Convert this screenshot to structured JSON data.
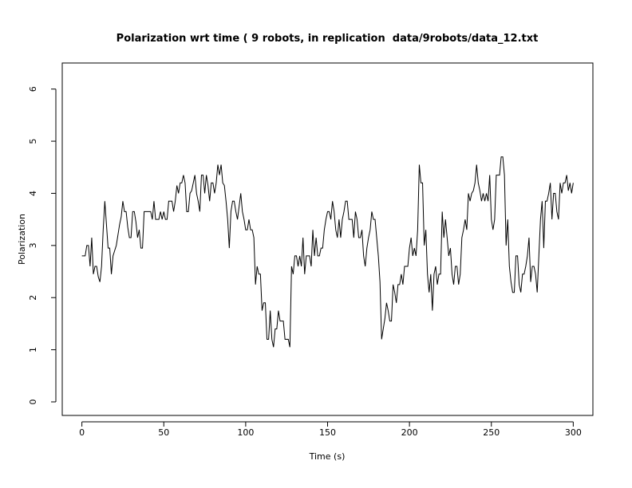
{
  "chart_data": {
    "type": "line",
    "title": "Polarization wrt time ( 9 robots, in replication  data/9robots/data_12.txt",
    "x_label": "Time (s)",
    "y_label": "Polarization",
    "xlim": [
      -12,
      312
    ],
    "ylim": [
      -0.26,
      6.5
    ],
    "xticks": [
      0,
      50,
      100,
      150,
      200,
      250,
      300
    ],
    "yticks": [
      0,
      1,
      2,
      3,
      4,
      5,
      6
    ],
    "x": [
      0,
      1,
      2,
      3,
      4,
      5,
      6,
      7,
      8,
      9,
      10,
      11,
      12,
      13,
      14,
      15,
      16,
      17,
      18,
      19,
      20,
      21,
      22,
      23,
      24,
      25,
      26,
      27,
      28,
      29,
      30,
      31,
      32,
      33,
      34,
      35,
      36,
      37,
      38,
      39,
      40,
      41,
      42,
      43,
      44,
      45,
      46,
      47,
      48,
      49,
      50,
      51,
      52,
      53,
      54,
      55,
      56,
      57,
      58,
      59,
      60,
      61,
      62,
      63,
      64,
      65,
      66,
      67,
      68,
      69,
      70,
      71,
      72,
      73,
      74,
      75,
      76,
      77,
      78,
      79,
      80,
      81,
      82,
      83,
      84,
      85,
      86,
      87,
      88,
      89,
      90,
      91,
      92,
      93,
      94,
      95,
      96,
      97,
      98,
      99,
      100,
      101,
      102,
      103,
      104,
      105,
      106,
      107,
      108,
      109,
      110,
      111,
      112,
      113,
      114,
      115,
      116,
      117,
      118,
      119,
      120,
      121,
      122,
      123,
      124,
      125,
      126,
      127,
      128,
      129,
      130,
      131,
      132,
      133,
      134,
      135,
      136,
      137,
      138,
      139,
      140,
      141,
      142,
      143,
      144,
      145,
      146,
      147,
      148,
      149,
      150,
      151,
      152,
      153,
      154,
      155,
      156,
      157,
      158,
      159,
      160,
      161,
      162,
      163,
      164,
      165,
      166,
      167,
      168,
      169,
      170,
      171,
      172,
      173,
      174,
      175,
      176,
      177,
      178,
      179,
      180,
      181,
      182,
      183,
      184,
      185,
      186,
      187,
      188,
      189,
      190,
      191,
      192,
      193,
      194,
      195,
      196,
      197,
      198,
      199,
      200,
      201,
      202,
      203,
      204,
      205,
      206,
      207,
      208,
      209,
      210,
      211,
      212,
      213,
      214,
      215,
      216,
      217,
      218,
      219,
      220,
      221,
      222,
      223,
      224,
      225,
      226,
      227,
      228,
      229,
      230,
      231,
      232,
      233,
      234,
      235,
      236,
      237,
      238,
      239,
      240,
      241,
      242,
      243,
      244,
      245,
      246,
      247,
      248,
      249,
      250,
      251,
      252,
      253,
      254,
      255,
      256,
      257,
      258,
      259,
      260,
      261,
      262,
      263,
      264,
      265,
      266,
      267,
      268,
      269,
      270,
      271,
      272,
      273,
      274,
      275,
      276,
      277,
      278,
      279,
      280,
      281,
      282,
      283,
      284,
      285,
      286,
      287,
      288,
      289,
      290,
      291,
      292,
      293,
      294,
      295,
      296,
      297,
      298,
      299,
      300
    ],
    "series": [
      {
        "color": "#000000",
        "values": [
          2.8,
          2.8,
          2.8,
          3.0,
          3.0,
          2.6,
          3.15,
          2.45,
          2.6,
          2.6,
          2.4,
          2.3,
          2.6,
          3.3,
          3.85,
          3.4,
          2.95,
          2.95,
          2.45,
          2.8,
          2.9,
          3.0,
          3.2,
          3.4,
          3.55,
          3.85,
          3.65,
          3.65,
          3.35,
          3.15,
          3.15,
          3.65,
          3.65,
          3.45,
          3.15,
          3.3,
          2.95,
          2.95,
          3.65,
          3.65,
          3.65,
          3.65,
          3.65,
          3.5,
          3.85,
          3.5,
          3.5,
          3.5,
          3.65,
          3.5,
          3.65,
          3.5,
          3.5,
          3.85,
          3.85,
          3.85,
          3.65,
          3.85,
          4.15,
          4.0,
          4.2,
          4.2,
          4.35,
          4.2,
          3.65,
          3.65,
          4.0,
          4.05,
          4.2,
          4.35,
          4.0,
          3.85,
          3.65,
          4.35,
          4.35,
          4.0,
          4.35,
          4.15,
          3.85,
          4.2,
          4.2,
          4.0,
          4.2,
          4.55,
          4.35,
          4.55,
          4.2,
          4.15,
          3.85,
          3.5,
          2.95,
          3.65,
          3.85,
          3.85,
          3.65,
          3.5,
          3.75,
          4.0,
          3.65,
          3.5,
          3.3,
          3.3,
          3.5,
          3.3,
          3.3,
          3.15,
          2.25,
          2.6,
          2.45,
          2.45,
          1.75,
          1.9,
          1.9,
          1.2,
          1.2,
          1.75,
          1.2,
          1.05,
          1.4,
          1.4,
          1.75,
          1.55,
          1.55,
          1.55,
          1.2,
          1.2,
          1.2,
          1.05,
          2.6,
          2.45,
          2.8,
          2.8,
          2.6,
          2.8,
          2.6,
          3.15,
          2.45,
          2.8,
          2.8,
          2.8,
          2.6,
          3.3,
          2.8,
          3.15,
          2.8,
          2.8,
          2.95,
          2.95,
          3.3,
          3.5,
          3.65,
          3.65,
          3.5,
          3.85,
          3.65,
          3.3,
          3.15,
          3.5,
          3.15,
          3.5,
          3.65,
          3.85,
          3.85,
          3.5,
          3.5,
          3.5,
          3.15,
          3.65,
          3.5,
          3.15,
          3.15,
          3.3,
          2.8,
          2.6,
          2.95,
          3.15,
          3.3,
          3.65,
          3.5,
          3.5,
          3.15,
          2.8,
          2.3,
          1.2,
          1.4,
          1.6,
          1.9,
          1.75,
          1.55,
          1.55,
          2.25,
          2.1,
          1.9,
          2.25,
          2.25,
          2.45,
          2.25,
          2.6,
          2.6,
          2.6,
          2.95,
          3.15,
          2.8,
          2.95,
          2.8,
          3.3,
          4.55,
          4.2,
          4.2,
          3.0,
          3.3,
          2.45,
          2.1,
          2.45,
          1.75,
          2.45,
          2.6,
          2.25,
          2.45,
          2.45,
          3.65,
          3.15,
          3.5,
          3.15,
          2.8,
          2.95,
          2.45,
          2.25,
          2.6,
          2.6,
          2.25,
          2.45,
          3.15,
          3.3,
          3.5,
          3.3,
          4.0,
          3.85,
          4.0,
          4.05,
          4.2,
          4.55,
          4.2,
          4.05,
          3.85,
          4.0,
          3.85,
          4.0,
          3.85,
          4.35,
          3.5,
          3.3,
          3.5,
          4.35,
          4.35,
          4.35,
          4.7,
          4.7,
          4.35,
          3.0,
          3.5,
          2.6,
          2.3,
          2.1,
          2.1,
          2.8,
          2.8,
          2.25,
          2.1,
          2.45,
          2.45,
          2.6,
          2.8,
          3.15,
          2.3,
          2.6,
          2.6,
          2.45,
          2.1,
          2.8,
          3.5,
          3.85,
          2.95,
          3.85,
          3.85,
          4.0,
          4.2,
          3.5,
          4.0,
          4.0,
          3.65,
          3.5,
          4.2,
          4.0,
          4.2,
          4.2,
          4.35,
          4.05,
          4.2,
          4.0,
          4.2
        ]
      }
    ]
  }
}
